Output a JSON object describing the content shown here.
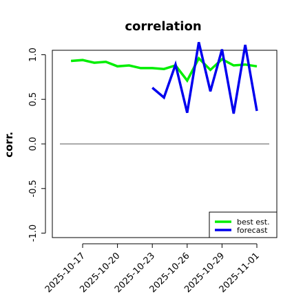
{
  "chart_data": {
    "type": "line",
    "title": "correlation",
    "xlabel": "",
    "ylabel": "corr.",
    "ylim": [
      -1.05,
      1.05
    ],
    "yticks": [
      "-1.0",
      "-0.5",
      "0.0",
      "0.5",
      "1.0"
    ],
    "ytick_values": [
      -1.0,
      -0.5,
      0.0,
      0.5,
      1.0
    ],
    "xticks": [
      "2025-10-17",
      "2025-10-20",
      "2025-10-23",
      "2025-10-26",
      "2025-10-29",
      "2025-11-01"
    ],
    "highlighted_xtick": "2025-10-23",
    "highlight_color": "#228b22",
    "reference_line": 0.0,
    "legend": {
      "placement": "bottom-right",
      "entries": [
        "best est.",
        "forecast"
      ]
    },
    "series": [
      {
        "name": "best est.",
        "color": "#00ee00",
        "x": [
          "2025-10-16",
          "2025-10-17",
          "2025-10-18",
          "2025-10-19",
          "2025-10-20",
          "2025-10-21",
          "2025-10-22",
          "2025-10-23",
          "2025-10-24",
          "2025-10-25",
          "2025-10-26",
          "2025-10-27",
          "2025-10-28",
          "2025-10-29",
          "2025-10-30",
          "2025-10-31",
          "2025-11-01"
        ],
        "values": [
          0.93,
          0.94,
          0.91,
          0.92,
          0.87,
          0.88,
          0.85,
          0.85,
          0.84,
          0.88,
          0.71,
          0.96,
          0.83,
          0.95,
          0.88,
          0.89,
          0.87
        ]
      },
      {
        "name": "forecast",
        "color": "#0000ee",
        "x": [
          "2025-10-23",
          "2025-10-24",
          "2025-10-25",
          "2025-10-26",
          "2025-10-27",
          "2025-10-28",
          "2025-10-29",
          "2025-10-30",
          "2025-10-31",
          "2025-11-01"
        ],
        "values": [
          0.63,
          0.52,
          0.89,
          0.35,
          1.14,
          0.59,
          1.06,
          0.34,
          1.11,
          0.37
        ]
      }
    ]
  }
}
